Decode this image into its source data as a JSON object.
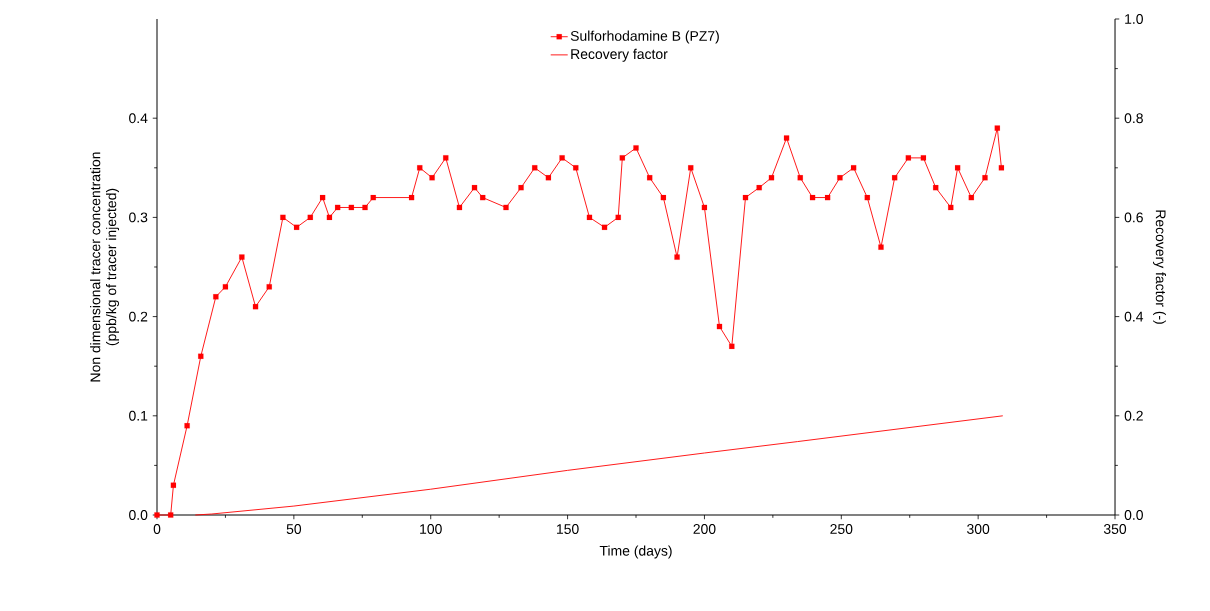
{
  "chart_data": {
    "type": "line",
    "xlabel": "Time (days)",
    "ylabel": "Non dimensional tracer concentration\n(ppb/kg of tracer injected)",
    "y2label": "Recovery factor (-)",
    "xlim": [
      0,
      350
    ],
    "xticks": [
      0,
      50,
      100,
      150,
      200,
      250,
      300,
      350
    ],
    "ylim": [
      0,
      0.5
    ],
    "yticks": [
      {
        "value": 0,
        "label": "0.0"
      },
      0.1,
      0.2,
      0.3,
      0.4
    ],
    "y2lim": [
      0,
      1.0
    ],
    "y2ticks": [
      {
        "value": 0,
        "label": "0.0"
      },
      0.2,
      0.4,
      0.6,
      0.8,
      {
        "value": 1.0,
        "label": "1.0"
      }
    ],
    "legend": "top",
    "grid": false,
    "line_style": "solid",
    "series": [
      {
        "name": "Sulforhodamine B (PZ7)",
        "color": "#ff0000",
        "marker": "square",
        "axis": "y",
        "x": [
          0,
          5,
          6,
          11,
          16,
          21.5,
          25,
          31,
          36,
          41,
          46,
          51,
          56,
          60.5,
          63,
          66,
          71,
          76,
          79,
          93,
          96,
          100.5,
          105.5,
          110.5,
          116,
          119,
          127.5,
          133,
          138,
          143,
          148,
          153,
          158,
          163.5,
          168.5,
          170,
          175,
          180,
          185,
          190,
          195,
          200,
          205.5,
          210,
          215,
          220,
          224.5,
          230,
          235,
          239.5,
          245,
          249.5,
          254.5,
          259.5,
          264.5,
          269.5,
          274.5,
          280,
          284.5,
          290,
          292.5,
          297.5,
          302.5,
          307,
          308.5
        ],
        "values": [
          0,
          0,
          0.03,
          0.09,
          0.16,
          0.22,
          0.23,
          0.26,
          0.21,
          0.23,
          0.3,
          0.29,
          0.3,
          0.32,
          0.3,
          0.31,
          0.31,
          0.31,
          0.32,
          0.32,
          0.35,
          0.34,
          0.36,
          0.31,
          0.33,
          0.32,
          0.31,
          0.33,
          0.35,
          0.34,
          0.36,
          0.35,
          0.3,
          0.29,
          0.3,
          0.36,
          0.37,
          0.34,
          0.32,
          0.26,
          0.35,
          0.31,
          0.19,
          0.17,
          0.32,
          0.33,
          0.34,
          0.38,
          0.34,
          0.32,
          0.32,
          0.34,
          0.35,
          0.32,
          0.27,
          0.34,
          0.36,
          0.36,
          0.33,
          0.31,
          0.35,
          0.32,
          0.34,
          0.39,
          0.35
        ]
      },
      {
        "name": "Recovery factor",
        "color": "#ff0000",
        "marker": "none",
        "axis": "y2",
        "x": [
          14,
          20,
          50,
          100,
          150,
          200,
          234,
          309
        ],
        "values": [
          0,
          0.002,
          0.018,
          0.052,
          0.09,
          0.125,
          0.148,
          0.2
        ]
      }
    ]
  }
}
